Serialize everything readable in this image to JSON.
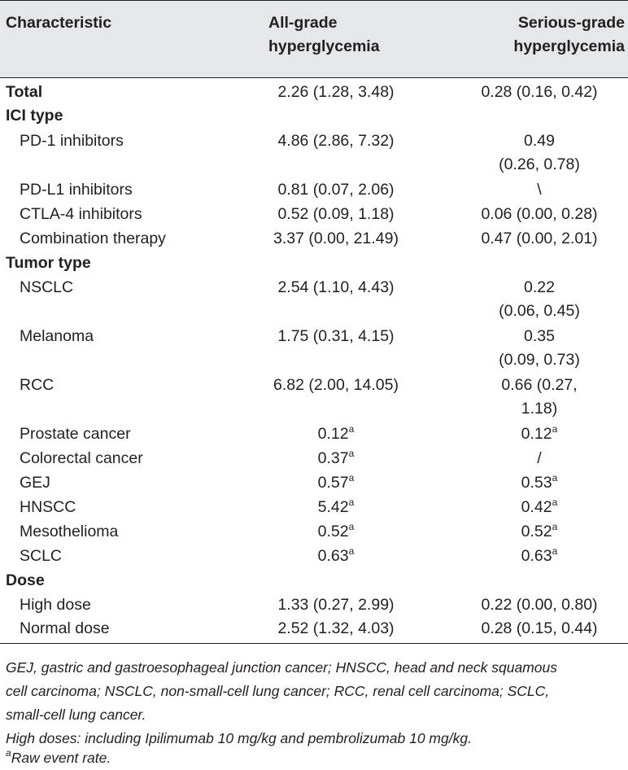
{
  "table": {
    "headers": {
      "characteristic": "Characteristic",
      "all_grade_line1": "All-grade",
      "all_grade_line2": "hyperglycemia",
      "serious_grade_line1": "Serious-grade",
      "serious_grade_line2": "hyperglycemia"
    },
    "total": {
      "label": "Total",
      "all": "2.26 (1.28, 3.48)",
      "serious": "0.28 (0.16, 0.42)"
    },
    "ici_type": {
      "heading": "ICI type",
      "rows": [
        {
          "label": "PD-1 inhibitors",
          "all": "4.86 (2.86, 7.32)",
          "serious_line1": "0.49",
          "serious_line2": "(0.26, 0.78)"
        },
        {
          "label": "PD-L1 inhibitors",
          "all": "0.81 (0.07, 2.06)",
          "serious": "\\"
        },
        {
          "label": "CTLA-4 inhibitors",
          "all": "0.52 (0.09, 1.18)",
          "serious": "0.06 (0.00, 0.28)"
        },
        {
          "label": "Combination therapy",
          "all": "3.37 (0.00, 21.49)",
          "serious": "0.47 (0.00, 2.01)"
        }
      ]
    },
    "tumor_type": {
      "heading": "Tumor type",
      "rows": [
        {
          "label": "NSCLC",
          "all": "2.54 (1.10, 4.43)",
          "serious_line1": "0.22",
          "serious_line2": "(0.06, 0.45)"
        },
        {
          "label": "Melanoma",
          "all": "1.75 (0.31, 4.15)",
          "serious_line1": "0.35",
          "serious_line2": "(0.09, 0.73)"
        },
        {
          "label": "RCC",
          "all": "6.82 (2.00, 14.05)",
          "serious_line1": "0.66 (0.27,",
          "serious_line2": "1.18)"
        },
        {
          "label": "Prostate cancer",
          "all": "0.12",
          "all_sup": "a",
          "serious": "0.12",
          "serious_sup": "a"
        },
        {
          "label": "Colorectal cancer",
          "all": "0.37",
          "all_sup": "a",
          "serious": "/"
        },
        {
          "label": "GEJ",
          "all": "0.57",
          "all_sup": "a",
          "serious": "0.53",
          "serious_sup": "a"
        },
        {
          "label": "HNSCC",
          "all": "5.42",
          "all_sup": "a",
          "serious": "0.42",
          "serious_sup": "a"
        },
        {
          "label": "Mesothelioma",
          "all": "0.52",
          "all_sup": "a",
          "serious": "0.52",
          "serious_sup": "a"
        },
        {
          "label": "SCLC",
          "all": "0.63",
          "all_sup": "a",
          "serious": "0.63",
          "serious_sup": "a"
        }
      ]
    },
    "dose": {
      "heading": "Dose",
      "rows": [
        {
          "label": "High dose",
          "all": "1.33 (0.27, 2.99)",
          "serious": "0.22 (0.00, 0.80)"
        },
        {
          "label": "Normal dose",
          "all": "2.52 (1.32, 4.03)",
          "serious": "0.28 (0.15, 0.44)"
        }
      ]
    }
  },
  "footnotes": {
    "abbrev_line1": "GEJ, gastric and gastroesophageal junction cancer; HNSCC, head and neck squamous",
    "abbrev_line2": "cell carcinoma; NSCLC, non-small-cell lung cancer; RCC, renal cell carcinoma; SCLC,",
    "abbrev_line3": "small-cell lung cancer.",
    "high_doses": "High doses: including Ipilimumab 10 mg/kg and pembrolizumab 10 mg/kg.",
    "raw_sup": "a",
    "raw_text": "Raw event rate."
  }
}
